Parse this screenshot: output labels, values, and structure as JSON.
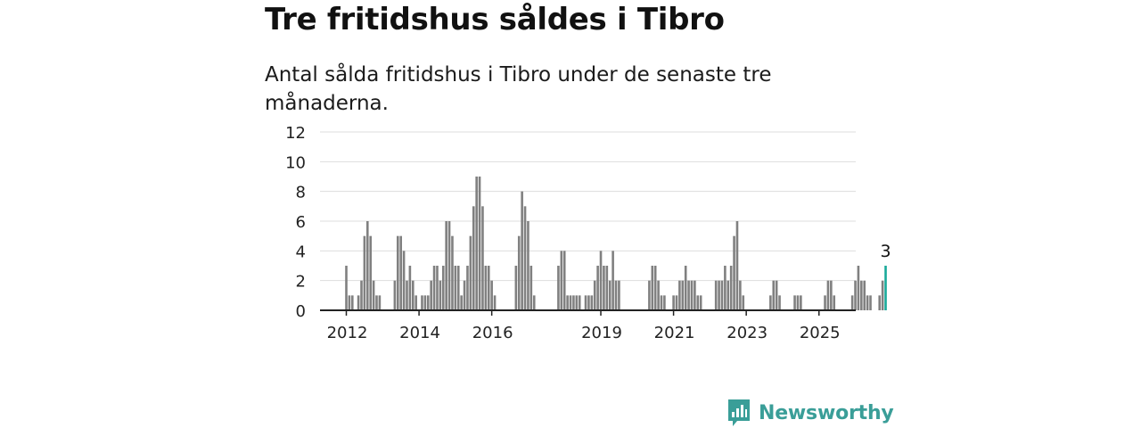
{
  "title": "Tre fritidshus såldes i Tibro",
  "subtitle": "Antal sålda fritidshus i Tibro under de senaste tre månaderna.",
  "brand": {
    "name": "Newsworthy",
    "color": "#3a9e98"
  },
  "colors": {
    "bar": "#808080",
    "highlight": "#1aaa9a",
    "grid": "#dddddd",
    "axis": "#222222"
  },
  "chart_data": {
    "type": "bar",
    "title": "",
    "xlabel": "",
    "ylabel": "",
    "ylim": [
      0,
      12
    ],
    "yticks": [
      0,
      2,
      4,
      6,
      8,
      10,
      12
    ],
    "xticks": [
      "2012",
      "2014",
      "2016",
      "2019",
      "2021",
      "2023",
      "2025"
    ],
    "grid": true,
    "x_start": "2012-01",
    "interval": "month",
    "values": [
      3,
      1,
      1,
      0,
      1,
      2,
      5,
      6,
      5,
      2,
      1,
      1,
      0,
      0,
      0,
      0,
      2,
      5,
      5,
      4,
      2,
      3,
      2,
      1,
      0,
      1,
      1,
      1,
      2,
      3,
      3,
      2,
      3,
      6,
      6,
      5,
      3,
      3,
      1,
      2,
      3,
      5,
      7,
      9,
      9,
      7,
      3,
      3,
      2,
      1,
      0,
      0,
      0,
      0,
      0,
      0,
      3,
      5,
      8,
      7,
      6,
      3,
      1,
      0,
      0,
      0,
      0,
      0,
      0,
      0,
      3,
      4,
      4,
      1,
      1,
      1,
      1,
      1,
      0,
      1,
      1,
      1,
      2,
      3,
      4,
      3,
      3,
      2,
      4,
      2,
      2,
      0,
      0,
      0,
      0,
      0,
      0,
      0,
      0,
      0,
      2,
      3,
      3,
      2,
      1,
      1,
      0,
      0,
      1,
      1,
      2,
      2,
      3,
      2,
      2,
      2,
      1,
      1,
      0,
      0,
      0,
      0,
      2,
      2,
      2,
      3,
      2,
      3,
      5,
      6,
      2,
      1,
      0,
      0,
      0,
      0,
      0,
      0,
      0,
      0,
      1,
      2,
      2,
      1,
      0,
      0,
      0,
      0,
      1,
      1,
      1,
      0,
      0,
      0,
      0,
      0,
      0,
      0,
      1,
      2,
      2,
      1,
      0,
      0,
      0,
      0,
      0,
      1,
      2,
      3,
      2,
      2,
      1,
      1,
      0,
      0,
      1,
      2,
      3
    ],
    "highlight_last": true,
    "annotation": "3"
  }
}
